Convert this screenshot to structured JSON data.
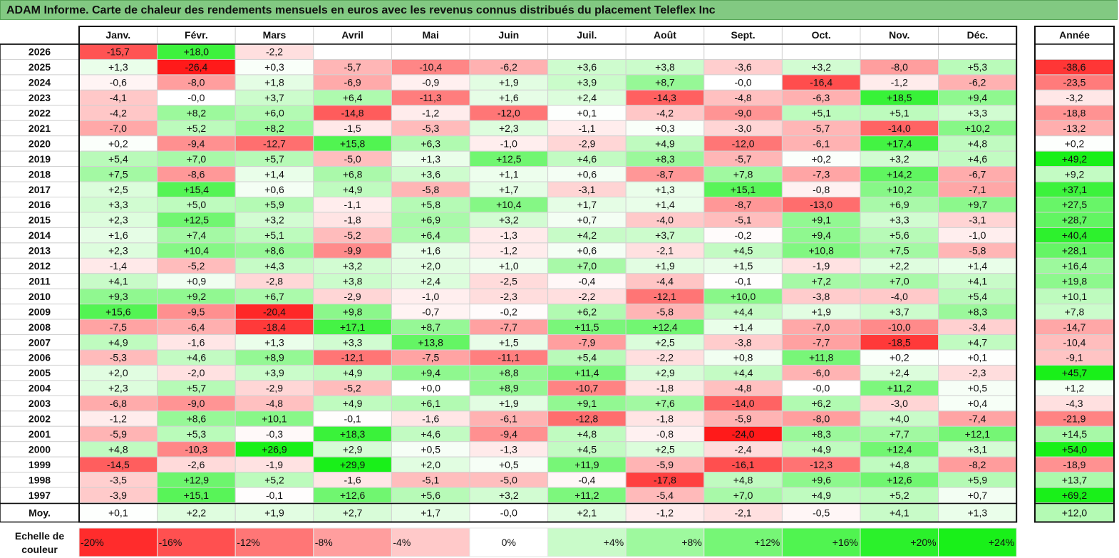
{
  "chart_data": {
    "type": "heatmap",
    "title": "ADAM Informe. Carte de chaleur des rendements mensuels en euros avec les revenus connus distribués du placement Teleflex Inc",
    "columns": [
      "Janv.",
      "Févr.",
      "Mars",
      "Avril",
      "Mai",
      "Juin",
      "Juil.",
      "Août",
      "Sept.",
      "Oct.",
      "Nov.",
      "Déc."
    ],
    "year_label": "Année",
    "rows": [
      {
        "year": "2026",
        "values": [
          "-15,7",
          "+18,0",
          "-2,2",
          "",
          "",
          "",
          "",
          "",
          "",
          "",
          "",
          ""
        ],
        "annual": ""
      },
      {
        "year": "2025",
        "values": [
          "+1,3",
          "-26,4",
          "+0,3",
          "-5,7",
          "-10,4",
          "-6,2",
          "+3,6",
          "+3,8",
          "-3,6",
          "+3,2",
          "-8,0",
          "+5,3"
        ],
        "annual": "-38,6"
      },
      {
        "year": "2024",
        "values": [
          "-0,6",
          "-8,0",
          "+1,8",
          "-6,9",
          "-0,9",
          "+1,9",
          "+3,9",
          "+8,7",
          "-0,0",
          "-16,4",
          "-1,2",
          "-6,2"
        ],
        "annual": "-23,5"
      },
      {
        "year": "2023",
        "values": [
          "-4,1",
          "-0,0",
          "+3,7",
          "+6,4",
          "-11,3",
          "+1,6",
          "+2,4",
          "-14,3",
          "-4,8",
          "-6,3",
          "+18,5",
          "+9,4"
        ],
        "annual": "-3,2"
      },
      {
        "year": "2022",
        "values": [
          "-4,2",
          "+8,2",
          "+6,0",
          "-14,8",
          "-1,2",
          "-12,0",
          "+0,1",
          "-4,2",
          "-9,0",
          "+5,1",
          "+5,1",
          "+3,3"
        ],
        "annual": "-18,8"
      },
      {
        "year": "2021",
        "values": [
          "-7,0",
          "+5,2",
          "+8,2",
          "-1,5",
          "-5,3",
          "+2,3",
          "-1,1",
          "+0,3",
          "-3,0",
          "-5,7",
          "-14,0",
          "+10,2"
        ],
        "annual": "-13,2"
      },
      {
        "year": "2020",
        "values": [
          "+0,2",
          "-9,4",
          "-12,7",
          "+15,8",
          "+6,3",
          "-1,0",
          "-2,9",
          "+4,9",
          "-12,0",
          "-6,1",
          "+17,4",
          "+4,8"
        ],
        "annual": "+0,2"
      },
      {
        "year": "2019",
        "values": [
          "+5,4",
          "+7,0",
          "+5,7",
          "-5,0",
          "+1,3",
          "+12,5",
          "+4,6",
          "+8,3",
          "-5,7",
          "+0,2",
          "+3,2",
          "+4,6"
        ],
        "annual": "+49,2"
      },
      {
        "year": "2018",
        "values": [
          "+7,5",
          "-8,6",
          "+1,4",
          "+6,8",
          "+3,6",
          "+1,1",
          "+0,6",
          "-8,7",
          "+7,8",
          "-7,3",
          "+14,2",
          "-6,7"
        ],
        "annual": "+9,2"
      },
      {
        "year": "2017",
        "values": [
          "+2,5",
          "+15,4",
          "+0,6",
          "+4,9",
          "-5,8",
          "+1,7",
          "-3,1",
          "+1,3",
          "+15,1",
          "-0,8",
          "+10,2",
          "-7,1"
        ],
        "annual": "+37,1"
      },
      {
        "year": "2016",
        "values": [
          "+3,3",
          "+5,0",
          "+5,9",
          "-1,1",
          "+5,8",
          "+10,4",
          "+1,7",
          "+1,4",
          "-8,7",
          "-13,0",
          "+6,9",
          "+9,7"
        ],
        "annual": "+27,5"
      },
      {
        "year": "2015",
        "values": [
          "+2,3",
          "+12,5",
          "+3,2",
          "-1,8",
          "+6,9",
          "+3,2",
          "+0,7",
          "-4,0",
          "-5,1",
          "+9,1",
          "+3,3",
          "-3,1"
        ],
        "annual": "+28,7"
      },
      {
        "year": "2014",
        "values": [
          "+1,6",
          "+7,4",
          "+5,1",
          "-5,2",
          "+6,4",
          "-1,3",
          "+4,2",
          "+3,7",
          "-0,2",
          "+9,4",
          "+5,6",
          "-1,0"
        ],
        "annual": "+40,4"
      },
      {
        "year": "2013",
        "values": [
          "+2,3",
          "+10,4",
          "+8,6",
          "-9,9",
          "+1,6",
          "-1,2",
          "+0,6",
          "-2,1",
          "+4,5",
          "+10,8",
          "+7,5",
          "-5,8"
        ],
        "annual": "+28,1"
      },
      {
        "year": "2012",
        "values": [
          "-1,4",
          "-5,2",
          "+4,3",
          "+3,2",
          "+2,0",
          "+1,0",
          "+7,0",
          "+1,9",
          "+1,5",
          "-1,9",
          "+2,2",
          "+1,4"
        ],
        "annual": "+16,4"
      },
      {
        "year": "2011",
        "values": [
          "+4,1",
          "+0,9",
          "-2,8",
          "+3,8",
          "+2,4",
          "-2,5",
          "-0,4",
          "-4,4",
          "-0,1",
          "+7,2",
          "+7,0",
          "+4,1"
        ],
        "annual": "+19,8"
      },
      {
        "year": "2010",
        "values": [
          "+9,3",
          "+9,2",
          "+6,7",
          "-2,9",
          "-1,0",
          "-2,3",
          "-2,2",
          "-12,1",
          "+10,0",
          "-3,8",
          "-4,0",
          "+5,4"
        ],
        "annual": "+10,1"
      },
      {
        "year": "2009",
        "values": [
          "+15,6",
          "-9,5",
          "-20,4",
          "+9,8",
          "-0,7",
          "-0,2",
          "+6,2",
          "-5,8",
          "+4,4",
          "+1,9",
          "+3,7",
          "+8,3"
        ],
        "annual": "+7,8"
      },
      {
        "year": "2008",
        "values": [
          "-7,5",
          "-6,4",
          "-18,4",
          "+17,1",
          "+8,7",
          "-7,7",
          "+11,5",
          "+12,4",
          "+1,4",
          "-7,0",
          "-10,0",
          "-3,4"
        ],
        "annual": "-14,7"
      },
      {
        "year": "2007",
        "values": [
          "+4,9",
          "-1,6",
          "+1,3",
          "+3,3",
          "+13,8",
          "+1,5",
          "-7,9",
          "+2,5",
          "-3,8",
          "-7,7",
          "-18,5",
          "+4,7"
        ],
        "annual": "-10,4"
      },
      {
        "year": "2006",
        "values": [
          "-5,3",
          "+4,6",
          "+8,9",
          "-12,1",
          "-7,5",
          "-11,1",
          "+5,4",
          "-2,2",
          "+0,8",
          "+11,8",
          "+0,2",
          "+0,1"
        ],
        "annual": "-9,1"
      },
      {
        "year": "2005",
        "values": [
          "+2,0",
          "-2,0",
          "+3,9",
          "+4,9",
          "+9,4",
          "+8,8",
          "+11,4",
          "+2,9",
          "+4,4",
          "-6,0",
          "+2,4",
          "-2,3"
        ],
        "annual": "+45,7"
      },
      {
        "year": "2004",
        "values": [
          "+2,3",
          "+5,7",
          "-2,9",
          "-5,2",
          "+0,0",
          "+8,9",
          "-10,7",
          "-1,8",
          "-4,8",
          "-0,0",
          "+11,2",
          "+0,5"
        ],
        "annual": "+1,2"
      },
      {
        "year": "2003",
        "values": [
          "-6,8",
          "-9,0",
          "-4,8",
          "+4,9",
          "+6,1",
          "+1,9",
          "+9,1",
          "+7,6",
          "-14,0",
          "+6,2",
          "-3,0",
          "+0,4"
        ],
        "annual": "-4,3"
      },
      {
        "year": "2002",
        "values": [
          "-1,2",
          "+8,6",
          "+10,1",
          "-0,1",
          "-1,6",
          "-6,1",
          "-12,8",
          "-1,8",
          "-5,9",
          "-8,0",
          "+4,0",
          "-7,4"
        ],
        "annual": "-21,9"
      },
      {
        "year": "2001",
        "values": [
          "-5,9",
          "+5,3",
          "-0,3",
          "+18,3",
          "+4,6",
          "-9,4",
          "+4,8",
          "-0,8",
          "-24,0",
          "+8,3",
          "+7,7",
          "+12,1"
        ],
        "annual": "+14,5"
      },
      {
        "year": "2000",
        "values": [
          "+4,8",
          "-10,3",
          "+26,9",
          "+2,9",
          "+0,5",
          "-1,3",
          "+4,5",
          "+2,5",
          "-2,4",
          "+4,9",
          "+12,4",
          "+3,1"
        ],
        "annual": "+54,0"
      },
      {
        "year": "1999",
        "values": [
          "-14,5",
          "-2,6",
          "-1,9",
          "+29,9",
          "+2,0",
          "+0,5",
          "+11,9",
          "-5,9",
          "-16,1",
          "-12,3",
          "+4,8",
          "-8,2"
        ],
        "annual": "-18,9"
      },
      {
        "year": "1998",
        "values": [
          "-3,5",
          "+12,9",
          "+5,2",
          "-1,6",
          "-5,1",
          "-5,0",
          "-0,4",
          "-17,8",
          "+4,8",
          "+9,6",
          "+12,6",
          "+5,9"
        ],
        "annual": "+13,7"
      },
      {
        "year": "1997",
        "values": [
          "-3,9",
          "+15,1",
          "-0,1",
          "+12,6",
          "+5,6",
          "+3,2",
          "+11,2",
          "-5,4",
          "+7,0",
          "+4,9",
          "+5,2",
          "+0,7"
        ],
        "annual": "+69,2"
      }
    ],
    "average": {
      "label": "Moy.",
      "values": [
        "+0,1",
        "+2,2",
        "+1,9",
        "+2,7",
        "+1,7",
        "-0,0",
        "+2,1",
        "-1,2",
        "-2,1",
        "-0,5",
        "+4,1",
        "+1,3"
      ],
      "annual": "+12,0"
    },
    "scale": {
      "label_line1": "Echelle de",
      "label_line2": "couleur",
      "items": [
        "-20%",
        "-16%",
        "-12%",
        "-8%",
        "-4%",
        "0%",
        "+4%",
        "+8%",
        "+12%",
        "+16%",
        "+20%",
        "+24%"
      ],
      "values": [
        -20,
        -16,
        -12,
        -8,
        -4,
        0,
        4,
        8,
        12,
        16,
        20,
        24
      ]
    },
    "colors": {
      "negative_max": "#ff1a1a",
      "neutral": "#ffffff",
      "positive_max": "#19f019",
      "title_bg": "#82c982"
    }
  }
}
